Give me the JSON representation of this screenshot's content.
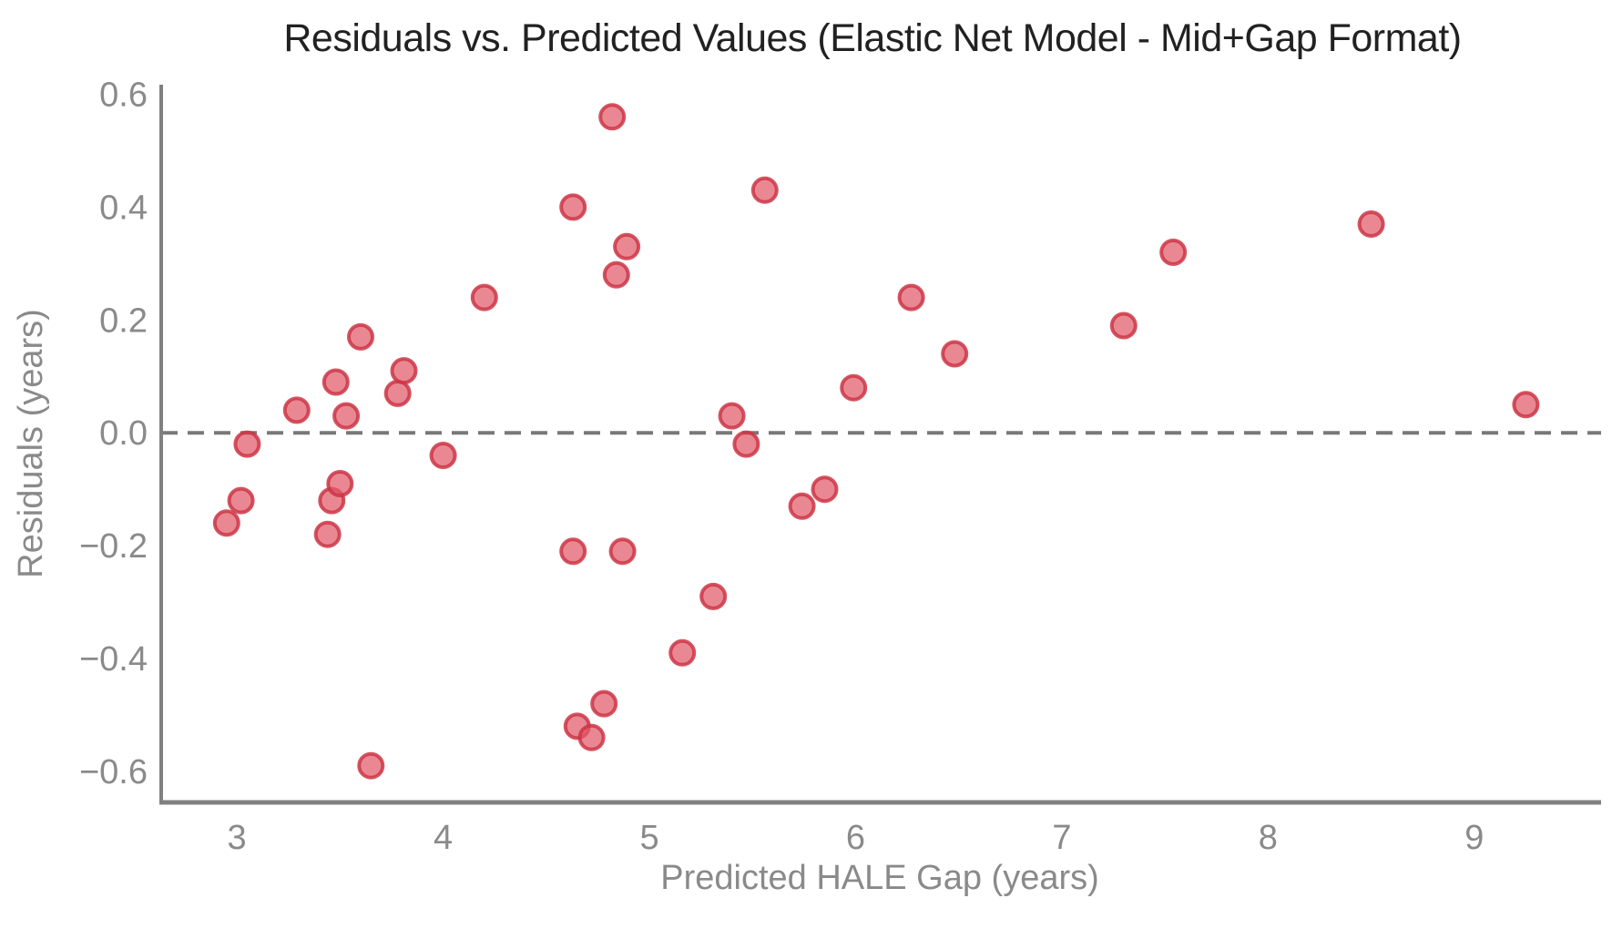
{
  "chart_data": {
    "type": "scatter",
    "title": "Residuals vs. Predicted Values (Elastic Net Model - Mid+Gap Format)",
    "xlabel": "Predicted HALE Gap (years)",
    "ylabel": "Residuals (years)",
    "x_ticks": [
      3,
      4,
      5,
      6,
      7,
      8,
      9
    ],
    "y_ticks": [
      0.6,
      0.4,
      0.2,
      0.0,
      -0.2,
      -0.4,
      -0.6
    ],
    "xlim": [
      2.633,
      9.597
    ],
    "ylim": [
      -0.655,
      0.617
    ],
    "grid": false,
    "legend_position": "none",
    "zero_line": {
      "y": 0.0,
      "style": "dashed"
    },
    "points": [
      [
        2.95,
        -0.16
      ],
      [
        3.02,
        -0.12
      ],
      [
        3.05,
        -0.02
      ],
      [
        3.29,
        0.04
      ],
      [
        3.44,
        -0.18
      ],
      [
        3.46,
        -0.12
      ],
      [
        3.48,
        0.09
      ],
      [
        3.5,
        -0.09
      ],
      [
        3.53,
        0.03
      ],
      [
        3.6,
        0.17
      ],
      [
        3.65,
        -0.59
      ],
      [
        3.78,
        0.07
      ],
      [
        3.81,
        0.11
      ],
      [
        4.0,
        -0.04
      ],
      [
        4.2,
        0.24
      ],
      [
        4.63,
        0.4
      ],
      [
        4.63,
        -0.21
      ],
      [
        4.65,
        -0.52
      ],
      [
        4.72,
        -0.54
      ],
      [
        4.78,
        -0.48
      ],
      [
        4.82,
        0.56
      ],
      [
        4.84,
        0.28
      ],
      [
        4.87,
        -0.21
      ],
      [
        4.89,
        0.33
      ],
      [
        5.16,
        -0.39
      ],
      [
        5.31,
        -0.29
      ],
      [
        5.4,
        0.03
      ],
      [
        5.47,
        -0.02
      ],
      [
        5.56,
        0.43
      ],
      [
        5.74,
        -0.13
      ],
      [
        5.85,
        -0.1
      ],
      [
        5.99,
        0.08
      ],
      [
        6.27,
        0.24
      ],
      [
        6.48,
        0.14
      ],
      [
        7.3,
        0.19
      ],
      [
        7.54,
        0.32
      ],
      [
        8.5,
        0.37
      ],
      [
        9.25,
        0.05
      ]
    ],
    "colors": {
      "marker_fill": "#e05a6a",
      "marker_edge": "#cc3545",
      "spine": "#808080",
      "zero_line": "#787878",
      "tick_labels": "#8a8a8a",
      "title": "#212121"
    }
  }
}
